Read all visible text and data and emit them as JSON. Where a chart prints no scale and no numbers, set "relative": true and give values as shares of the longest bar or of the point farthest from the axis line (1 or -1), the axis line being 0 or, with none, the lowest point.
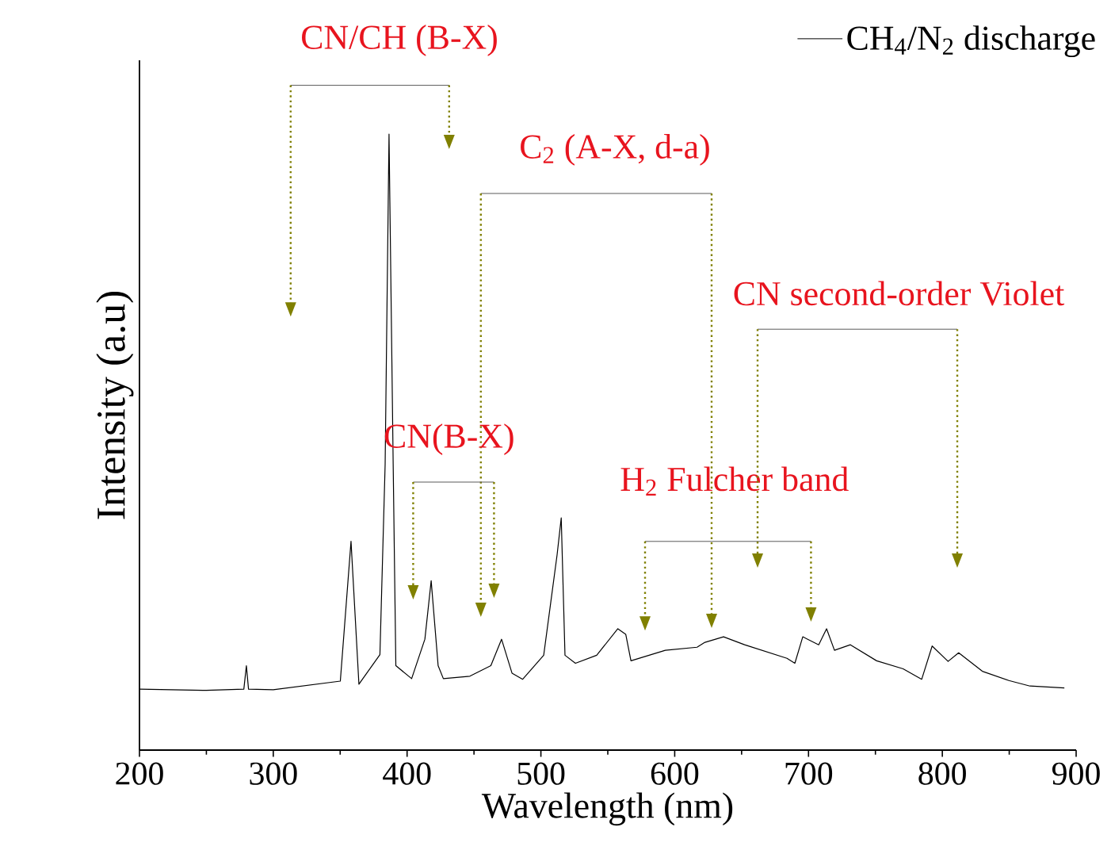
{
  "chart_data": {
    "type": "line",
    "relative": true,
    "xlabel": "Wavelength (nm)",
    "ylabel": "Intensity (a.u)",
    "xlim": [
      200,
      900
    ],
    "xticks": [
      200,
      300,
      400,
      500,
      600,
      700,
      800,
      900
    ],
    "legend": "top right",
    "series": [
      {
        "name": "CH$_{4}$/N$_{2}$ discharge",
        "color": "#000000",
        "x": [
          200,
          250,
          278,
          279.9,
          281.5,
          300,
          350.1,
          358.1,
          364.0,
          379.7,
          383.6,
          386.5,
          389.6,
          391.6,
          403.4,
          413.3,
          418.0,
          423.2,
          427.1,
          446.9,
          462.6,
          470.6,
          478.4,
          486.4,
          502.1,
          512.1,
          515.2,
          518.0,
          525.8,
          541.7,
          557.5,
          563.4,
          567.3,
          593.0,
          616.7,
          622.6,
          636.5,
          652.2,
          683.9,
          689.8,
          695.7,
          707.6,
          713.5,
          719.4,
          731.3,
          750.9,
          770.7,
          784.6,
          792.4,
          804.3,
          812.2,
          829.9,
          849.7,
          865.5,
          891.2
        ],
        "values": [
          0.099,
          0.097,
          0.099,
          0.137,
          0.099,
          0.098,
          0.112,
          0.339,
          0.107,
          0.155,
          0.464,
          1.0,
          0.464,
          0.137,
          0.116,
          0.18,
          0.275,
          0.137,
          0.116,
          0.12,
          0.137,
          0.18,
          0.125,
          0.115,
          0.154,
          0.317,
          0.377,
          0.154,
          0.141,
          0.154,
          0.197,
          0.188,
          0.145,
          0.162,
          0.167,
          0.175,
          0.184,
          0.171,
          0.149,
          0.141,
          0.184,
          0.171,
          0.197,
          0.162,
          0.171,
          0.145,
          0.132,
          0.115,
          0.169,
          0.144,
          0.158,
          0.128,
          0.113,
          0.104,
          0.101
        ]
      }
    ],
    "annotations": [
      "CN/CH (B-X)",
      "C$_{2}$ (A-X, d-a)",
      "CN(B-X)",
      "H$_{2}$ Fulcher band",
      "CN second-order Violet"
    ]
  }
}
